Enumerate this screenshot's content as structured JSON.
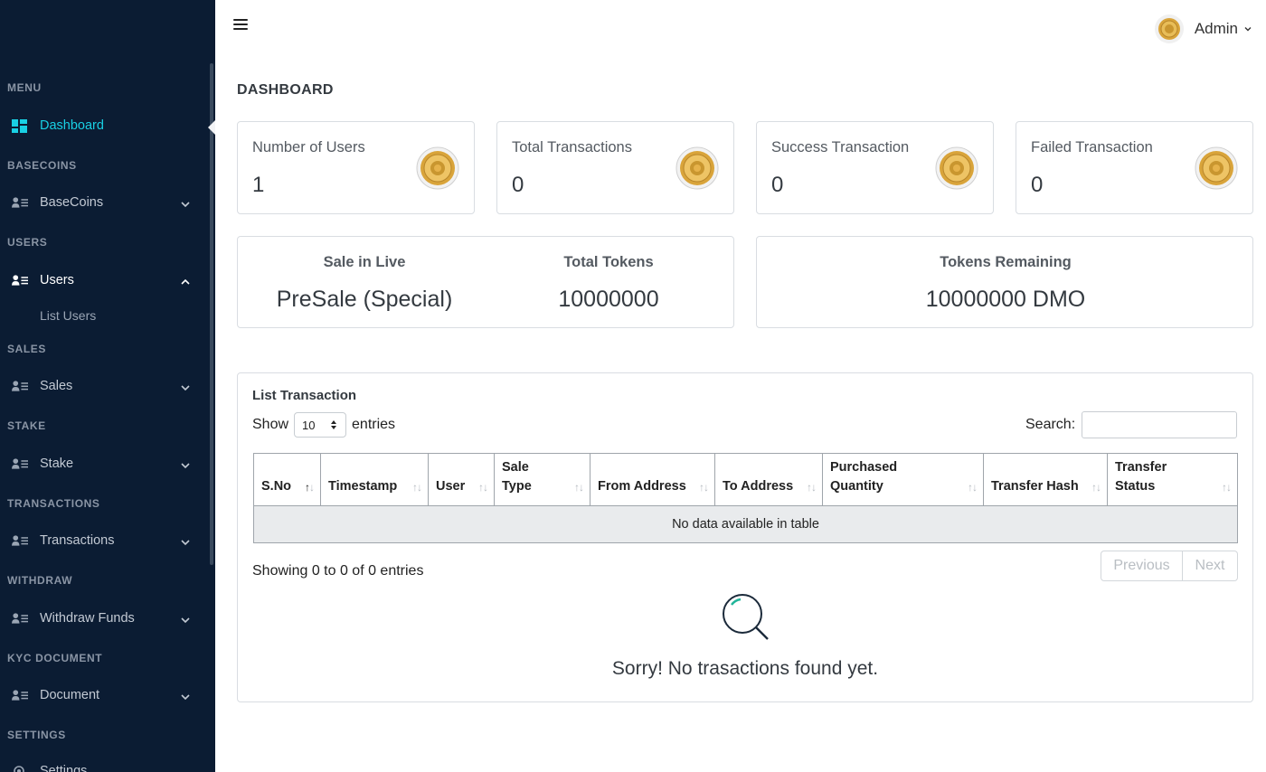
{
  "sidebar": {
    "menu_heading": "MENU",
    "dashboard": "Dashboard",
    "sections": {
      "basecoins": "BASECOINS",
      "users": "USERS",
      "sales": "SALES",
      "stake": "STAKE",
      "transactions": "TRANSACTIONS",
      "withdraw": "WITHDRAW",
      "kyc": "KYC DOCUMENT",
      "settings": "SETTINGS"
    },
    "items": {
      "basecoins": "BaseCoins",
      "users": "Users",
      "list_users": "List Users",
      "sales": "Sales",
      "stake": "Stake",
      "transactions": "Transactions",
      "withdraw": "Withdraw Funds",
      "document": "Document",
      "settings": "Settings"
    },
    "accent": "#19d0e4",
    "background": "#0b1c33"
  },
  "header": {
    "user_name": "Admin"
  },
  "page_title": "DASHBOARD",
  "stats": [
    {
      "label": "Number of Users",
      "value": "1"
    },
    {
      "label": "Total Transactions",
      "value": "0"
    },
    {
      "label": "Success Transaction",
      "value": "0"
    },
    {
      "label": "Failed Transaction",
      "value": "0"
    }
  ],
  "sale": {
    "live_label": "Sale in Live",
    "live_value": "PreSale (Special)",
    "total_label": "Total Tokens",
    "total_value": "10000000",
    "remaining_label": "Tokens Remaining",
    "remaining_value": "10000000 DMO"
  },
  "transactions": {
    "title": "List Transaction",
    "show_label": "Show",
    "entries_label": "entries",
    "page_size": "10",
    "search_label": "Search:",
    "columns": [
      "S.No",
      "Timestamp",
      "User",
      "Sale Type",
      "From Address",
      "To Address",
      "Purchased Quantity",
      "Transfer Hash",
      "Transfer Status"
    ],
    "empty_row": "No data available in table",
    "showing": "Showing 0 to 0 of 0 entries",
    "prev": "Previous",
    "next": "Next",
    "empty_message": "Sorry! No trasactions found yet."
  }
}
